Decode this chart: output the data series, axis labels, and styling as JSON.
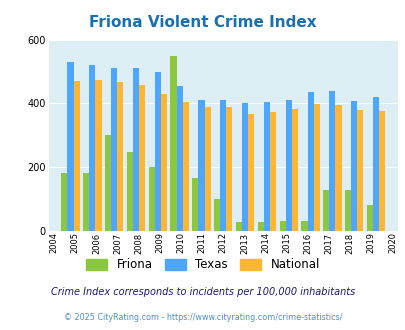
{
  "title": "Friona Violent Crime Index",
  "years": [
    2004,
    2005,
    2006,
    2007,
    2008,
    2009,
    2010,
    2011,
    2012,
    2013,
    2014,
    2015,
    2016,
    2017,
    2018,
    2019,
    2020
  ],
  "friona": [
    0,
    183,
    183,
    300,
    248,
    202,
    548,
    165,
    100,
    27,
    28,
    30,
    30,
    130,
    130,
    80,
    0
  ],
  "texas": [
    0,
    530,
    520,
    510,
    510,
    497,
    453,
    410,
    410,
    400,
    405,
    410,
    437,
    440,
    408,
    420,
    0
  ],
  "national": [
    0,
    470,
    473,
    466,
    457,
    429,
    403,
    388,
    389,
    368,
    373,
    382,
    398,
    394,
    380,
    377,
    0
  ],
  "friona_color": "#8dc63f",
  "texas_color": "#4da6ff",
  "national_color": "#ffb733",
  "bg_color": "#ddeef5",
  "ylim": [
    0,
    600
  ],
  "yticks": [
    0,
    200,
    400,
    600
  ],
  "subtitle": "Crime Index corresponds to incidents per 100,000 inhabitants",
  "footer": "© 2025 CityRating.com - https://www.cityrating.com/crime-statistics/",
  "title_color": "#1a6faf",
  "subtitle_color": "#1a1a6e",
  "footer_color": "#4a90d9",
  "legend_labels": [
    "Friona",
    "Texas",
    "National"
  ]
}
